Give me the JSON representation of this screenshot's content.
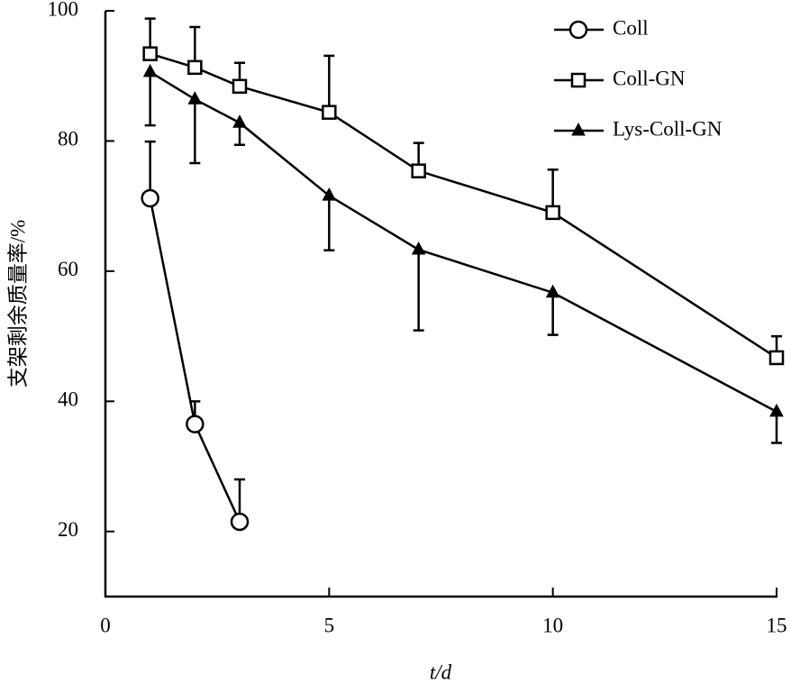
{
  "chart_data": {
    "type": "line",
    "x_label": "t/d",
    "y_label": "支架剩余质量率/%",
    "xlim": [
      0,
      15
    ],
    "xticks": [
      0,
      5,
      10,
      15
    ],
    "ylim": [
      10,
      100
    ],
    "yticks": [
      20,
      40,
      60,
      80,
      100
    ],
    "legend": "top-right",
    "series": [
      {
        "name": "Coll",
        "color": "#000000",
        "marker": "circle",
        "error_direction": "up",
        "x": [
          1,
          2,
          3
        ],
        "values": [
          71.2,
          36.5,
          21.5
        ],
        "errors": [
          8.7,
          3.5,
          6.5
        ]
      },
      {
        "name": "Coll-GN",
        "color": "#000000",
        "marker": "square",
        "error_direction": "up",
        "x": [
          1,
          2,
          3,
          5,
          7,
          10,
          15
        ],
        "values": [
          93.4,
          91.3,
          88.4,
          84.4,
          75.4,
          69,
          46.7
        ],
        "errors": [
          5.4,
          6.2,
          3.6,
          8.7,
          4.3,
          6.6,
          3.3
        ]
      },
      {
        "name": "Lys-Coll-GN",
        "color": "#000000",
        "marker": "triangle",
        "error_direction": "down",
        "x": [
          1,
          2,
          3,
          5,
          7,
          10,
          15
        ],
        "values": [
          90.6,
          86.4,
          82.8,
          71.6,
          63.3,
          56.7,
          38.4
        ],
        "errors": [
          8.2,
          9.8,
          3.4,
          8.4,
          12.4,
          6.5,
          4.8
        ]
      }
    ]
  }
}
